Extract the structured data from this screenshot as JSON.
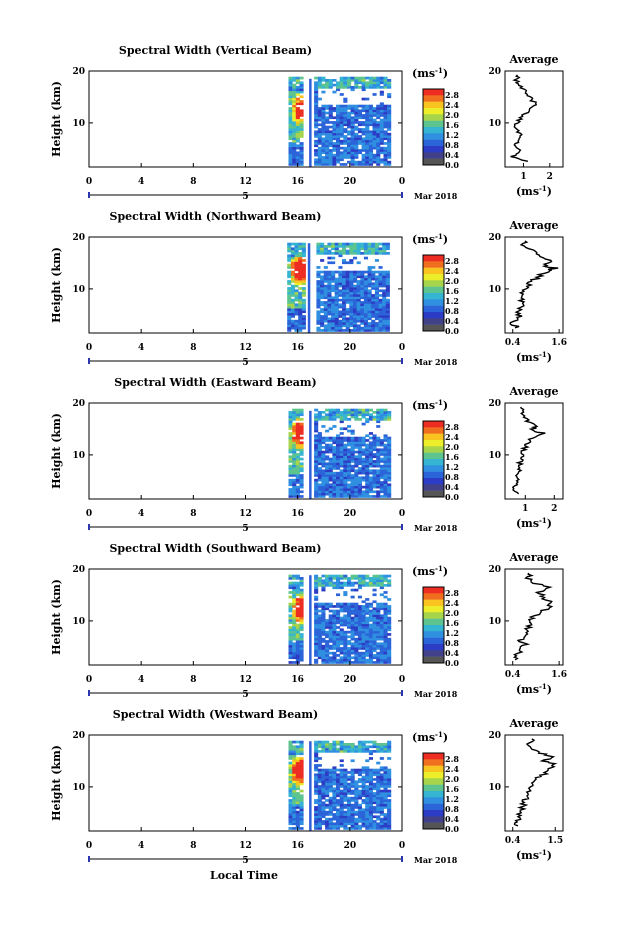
{
  "xaxis_label": "Local Time",
  "date_label": "Mar 2018",
  "day_label": "5",
  "colorbar": {
    "unit": "(ms",
    "unit_exp": "-1",
    "unit_close": ")",
    "ticks": [
      "2.8",
      "2.4",
      "2.0",
      "1.6",
      "1.2",
      "0.8",
      "0.4",
      "0.0"
    ],
    "colors": [
      "#ee2d22",
      "#f26e1f",
      "#f9c320",
      "#ecee2a",
      "#a6d44a",
      "#5dc48f",
      "#35b5d1",
      "#2f8fe0",
      "#2b64d8",
      "#2d3cc4",
      "#41418a",
      "#555555"
    ]
  },
  "avg_title": "Average",
  "avg_unit": "(ms",
  "avg_unit_exp": "-1",
  "avg_unit_close": ")",
  "x_ticks": [
    "0",
    "4",
    "8",
    "12",
    "16",
    "20",
    "0"
  ],
  "y_ticks": [
    "20",
    "10"
  ],
  "y_label": "Height (km)",
  "chart_data": [
    {
      "type": "heatmap",
      "title": "Spectral Width (Vertical Beam)",
      "xlabel": "Local Time",
      "ylabel": "Height (km)",
      "xlim": [
        0,
        24
      ],
      "ylim": [
        1.5,
        20
      ],
      "data_start": 15.3,
      "gap_start": 16.7,
      "gap_end": 17.2,
      "data_end": 23.0,
      "height_top": 18.5,
      "core": {
        "t": 16.1,
        "h": 12.5
      },
      "avg_ticks": [
        "1",
        "2"
      ],
      "avg_xlim": [
        0.3,
        2.5
      ],
      "avg_series": [
        [
          1.1,
          2.6
        ],
        [
          0.6,
          3.5
        ],
        [
          0.9,
          4.5
        ],
        [
          0.7,
          5.5
        ],
        [
          0.8,
          6.5
        ],
        [
          0.9,
          7.5
        ],
        [
          0.8,
          8.5
        ],
        [
          0.7,
          9.5
        ],
        [
          0.8,
          10.5
        ],
        [
          1.0,
          11.5
        ],
        [
          1.2,
          12.5
        ],
        [
          1.5,
          13.5
        ],
        [
          1.3,
          14.5
        ],
        [
          1.2,
          15.5
        ],
        [
          1.0,
          16.5
        ],
        [
          0.8,
          17.5
        ],
        [
          0.7,
          18.5
        ],
        [
          0.9,
          19.5
        ]
      ]
    },
    {
      "type": "heatmap",
      "title": "Spectral Width (Northward Beam)",
      "xlabel": "Local Time",
      "ylabel": "Height (km)",
      "xlim": [
        0,
        24
      ],
      "ylim": [
        1.5,
        20
      ],
      "data_start": 15.2,
      "gap_start": 16.6,
      "gap_end": 17.2,
      "data_end": 23.0,
      "height_top": 18.8,
      "core": {
        "t": 16.0,
        "h": 13.5
      },
      "avg_ticks": [
        "0.4",
        "1.6"
      ],
      "avg_xlim": [
        0.2,
        1.7
      ],
      "avg_series": [
        [
          0.5,
          2.5
        ],
        [
          0.4,
          3.5
        ],
        [
          0.6,
          4.5
        ],
        [
          0.5,
          5.5
        ],
        [
          0.6,
          6.5
        ],
        [
          0.6,
          7.5
        ],
        [
          0.7,
          8.5
        ],
        [
          0.6,
          9.5
        ],
        [
          0.8,
          10.5
        ],
        [
          0.9,
          11.5
        ],
        [
          1.1,
          12.5
        ],
        [
          1.3,
          13.5
        ],
        [
          1.5,
          14.0
        ],
        [
          1.2,
          14.5
        ],
        [
          1.4,
          15.5
        ],
        [
          1.0,
          16.5
        ],
        [
          0.9,
          17.5
        ],
        [
          0.7,
          18.5
        ],
        [
          0.8,
          19.5
        ]
      ]
    },
    {
      "type": "heatmap",
      "title": "Spectral Width (Eastward Beam)",
      "xlabel": "Local Time",
      "ylabel": "Height (km)",
      "xlim": [
        0,
        24
      ],
      "ylim": [
        1.5,
        20
      ],
      "data_start": 15.3,
      "gap_start": 16.7,
      "gap_end": 17.2,
      "data_end": 23.0,
      "height_top": 18.5,
      "core": {
        "t": 16.0,
        "h": 14.0
      },
      "avg_ticks": [
        "1",
        "2"
      ],
      "avg_xlim": [
        0.3,
        2.3
      ],
      "avg_series": [
        [
          0.7,
          2.5
        ],
        [
          0.6,
          3.5
        ],
        [
          0.7,
          4.5
        ],
        [
          0.7,
          5.5
        ],
        [
          0.8,
          6.5
        ],
        [
          0.8,
          7.5
        ],
        [
          0.8,
          8.5
        ],
        [
          0.9,
          9.5
        ],
        [
          0.9,
          10.5
        ],
        [
          1.0,
          11.5
        ],
        [
          1.1,
          12.5
        ],
        [
          1.3,
          13.5
        ],
        [
          1.6,
          14.2
        ],
        [
          1.2,
          14.8
        ],
        [
          1.4,
          15.5
        ],
        [
          1.1,
          16.5
        ],
        [
          0.9,
          17.5
        ],
        [
          1.0,
          18.5
        ],
        [
          0.8,
          19.5
        ]
      ]
    },
    {
      "type": "heatmap",
      "title": "Spectral Width (Southward Beam)",
      "xlabel": "Local Time",
      "ylabel": "Height (km)",
      "xlim": [
        0,
        24
      ],
      "ylim": [
        1.5,
        20
      ],
      "data_start": 15.3,
      "gap_start": 16.7,
      "gap_end": 17.2,
      "data_end": 23.0,
      "height_top": 18.8,
      "core": {
        "t": 16.1,
        "h": 12.0
      },
      "avg_ticks": [
        "0.4",
        "1.6"
      ],
      "avg_xlim": [
        0.2,
        1.7
      ],
      "avg_series": [
        [
          0.5,
          2.5
        ],
        [
          0.5,
          3.5
        ],
        [
          0.6,
          4.5
        ],
        [
          0.7,
          5.5
        ],
        [
          0.6,
          6.5
        ],
        [
          0.8,
          7.5
        ],
        [
          0.8,
          8.5
        ],
        [
          0.9,
          9.5
        ],
        [
          0.9,
          10.5
        ],
        [
          1.1,
          11.5
        ],
        [
          1.3,
          12.5
        ],
        [
          1.4,
          13.5
        ],
        [
          1.2,
          14.5
        ],
        [
          1.1,
          15.5
        ],
        [
          1.3,
          16.5
        ],
        [
          0.9,
          17.5
        ],
        [
          0.8,
          18.5
        ],
        [
          0.9,
          19.5
        ]
      ]
    },
    {
      "type": "heatmap",
      "title": "Spectral Width (Westward Beam)",
      "xlabel": "Local Time",
      "ylabel": "Height (km)",
      "xlim": [
        0,
        24
      ],
      "ylim": [
        1.5,
        20
      ],
      "data_start": 15.3,
      "gap_start": 16.7,
      "gap_end": 17.2,
      "data_end": 23.0,
      "height_top": 18.8,
      "core": {
        "t": 16.0,
        "h": 13.0
      },
      "avg_ticks": [
        "0.4",
        "1.5"
      ],
      "avg_xlim": [
        0.2,
        1.7
      ],
      "avg_series": [
        [
          0.5,
          2.5
        ],
        [
          0.5,
          3.5
        ],
        [
          0.6,
          4.5
        ],
        [
          0.6,
          5.5
        ],
        [
          0.7,
          6.5
        ],
        [
          0.7,
          7.5
        ],
        [
          0.8,
          8.5
        ],
        [
          0.8,
          9.5
        ],
        [
          0.9,
          10.5
        ],
        [
          1.0,
          11.5
        ],
        [
          1.2,
          12.5
        ],
        [
          1.3,
          13.5
        ],
        [
          1.5,
          14.3
        ],
        [
          1.2,
          15.0
        ],
        [
          1.4,
          15.8
        ],
        [
          1.1,
          16.5
        ],
        [
          0.9,
          17.5
        ],
        [
          0.8,
          18.5
        ],
        [
          1.0,
          19.5
        ]
      ]
    }
  ]
}
